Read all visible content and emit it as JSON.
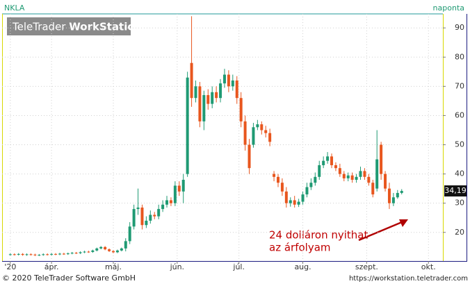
{
  "chart_data": {
    "type": "candlestick",
    "title": "NKLA",
    "subtitle": "naponta",
    "watermark": {
      "brand": "TeleTrader",
      "product": "WorkStation"
    },
    "annotation": [
      "24 dolláron nyithat",
      "az árfolyam"
    ],
    "up_color": "#1f9a73",
    "down_color": "#e8561e",
    "xlim": [
      68,
      282
    ],
    "xticks": [
      {
        "value": 72,
        "label": "'20"
      },
      {
        "value": 92,
        "label": "ápr."
      },
      {
        "value": 122,
        "label": "máj."
      },
      {
        "value": 153,
        "label": "jún."
      },
      {
        "value": 183,
        "label": "júl."
      },
      {
        "value": 214,
        "label": "aug."
      },
      {
        "value": 245,
        "label": "szept."
      },
      {
        "value": 275,
        "label": "okt."
      }
    ],
    "ylim": [
      10.2,
      94.8
    ],
    "yticks": [
      20,
      30,
      40,
      50,
      60,
      70,
      80,
      90
    ],
    "grid": true,
    "last_price": {
      "value": 34.19,
      "label": "34,19"
    },
    "x": [
      72,
      74,
      76,
      78,
      80,
      82,
      84,
      86,
      88,
      90,
      92,
      94,
      96,
      98,
      100,
      102,
      104,
      106,
      108,
      110,
      112,
      114,
      116,
      118,
      120,
      122,
      124,
      126,
      128,
      130,
      132,
      134,
      136,
      138,
      140,
      142,
      144,
      146,
      148,
      150,
      152,
      154,
      156,
      158,
      160,
      162,
      164,
      166,
      168,
      170,
      172,
      174,
      176,
      178,
      180,
      182,
      184,
      186,
      188,
      190,
      192,
      194,
      196,
      198,
      200,
      202,
      204,
      206,
      208,
      210,
      212,
      214,
      216,
      218,
      220,
      222,
      224,
      226,
      228,
      230,
      232,
      234,
      236,
      238,
      240,
      242,
      244,
      246,
      248,
      250,
      252,
      254,
      256,
      258,
      260,
      262
    ],
    "open": [
      12.4,
      12.5,
      12.4,
      12.6,
      12.3,
      12.5,
      12.4,
      12.2,
      12.3,
      12.5,
      12.4,
      12.6,
      12.5,
      12.7,
      12.6,
      12.8,
      13.0,
      12.9,
      13.2,
      13.4,
      13.3,
      13.8,
      14.5,
      15.0,
      14.2,
      13.6,
      13.2,
      13.8,
      14.5,
      17,
      22,
      28,
      28.5,
      22.5,
      24,
      26,
      25.5,
      28,
      29.5,
      31,
      30,
      36,
      34,
      40,
      78,
      66,
      70,
      58,
      67,
      64,
      68,
      66,
      71,
      74,
      70,
      72,
      66,
      58,
      50,
      50,
      56,
      57,
      55,
      54,
      40,
      39,
      37,
      34,
      30,
      31,
      29.5,
      30.5,
      33,
      35.5,
      37,
      39,
      43,
      44.5,
      46,
      43,
      42,
      40,
      38.5,
      39.5,
      38,
      39,
      41,
      39,
      37,
      35,
      50,
      40,
      35,
      30,
      32,
      33.5
    ],
    "high": [
      12.8,
      12.8,
      12.9,
      12.9,
      12.8,
      12.8,
      12.7,
      12.6,
      12.8,
      12.8,
      12.9,
      12.9,
      13.0,
      13.0,
      13.1,
      13.3,
      13.3,
      13.5,
      13.7,
      13.7,
      14.1,
      14.8,
      15.3,
      15.3,
      14.5,
      13.9,
      14.1,
      14.8,
      18,
      23.5,
      29.5,
      35,
      29.5,
      25.5,
      27.5,
      27,
      29.5,
      31,
      32.5,
      32,
      37.5,
      37.5,
      40,
      75,
      94,
      72,
      71.5,
      68.5,
      69,
      70,
      70,
      72.5,
      76,
      75.5,
      74,
      73.5,
      68,
      60,
      52,
      57.5,
      58.5,
      58,
      56.5,
      55.5,
      41,
      40,
      38.5,
      35.5,
      32,
      32.5,
      31.5,
      34,
      37,
      38.5,
      40.5,
      44.5,
      46,
      47.5,
      47,
      44,
      43.5,
      41,
      40.5,
      40.5,
      40,
      42.5,
      42,
      40,
      38,
      55,
      51,
      41,
      37,
      33.5,
      34.5,
      34.8
    ],
    "low": [
      12.1,
      12.1,
      12.1,
      12.0,
      12.0,
      12.1,
      11.9,
      11.9,
      12.0,
      12.1,
      12.1,
      12.2,
      12.2,
      12.3,
      12.3,
      12.5,
      12.6,
      12.6,
      12.9,
      13.0,
      13.0,
      13.5,
      14.2,
      13.9,
      13.3,
      12.9,
      12.9,
      13.5,
      13.5,
      16,
      21,
      26,
      21,
      21.5,
      23,
      24.5,
      24.5,
      27,
      28.5,
      29,
      29,
      32.5,
      30,
      39,
      63,
      64.5,
      56,
      55,
      62,
      62.5,
      64.5,
      64.5,
      69.5,
      68,
      68.5,
      64,
      56,
      48,
      40,
      49,
      55,
      53.5,
      52.5,
      49.5,
      37.5,
      35.5,
      32.5,
      28.5,
      28.8,
      28.5,
      28.7,
      29.5,
      32,
      34.5,
      36,
      38,
      42,
      43.5,
      42,
      41,
      39,
      37.5,
      37.5,
      37,
      37,
      38,
      38,
      36,
      32,
      34,
      38,
      34,
      28,
      29,
      31.5,
      33
    ],
    "close": [
      12.5,
      12.4,
      12.6,
      12.3,
      12.5,
      12.4,
      12.2,
      12.3,
      12.5,
      12.4,
      12.6,
      12.5,
      12.7,
      12.6,
      12.8,
      13.0,
      12.9,
      13.2,
      13.4,
      13.3,
      13.8,
      14.5,
      15.0,
      14.2,
      13.6,
      13.2,
      13.8,
      14.5,
      17,
      22,
      28,
      28.5,
      22.5,
      24,
      26,
      25.5,
      28,
      29.5,
      31,
      30,
      36,
      34,
      38,
      73,
      66,
      70,
      58,
      67,
      64,
      68,
      66,
      71,
      74,
      70,
      72,
      66,
      58,
      50,
      42,
      56,
      57,
      55,
      54,
      51,
      39,
      37,
      34,
      30,
      31,
      29.5,
      30.5,
      33,
      35.5,
      37,
      39,
      43,
      44.5,
      46,
      43,
      42,
      40,
      38.5,
      39.5,
      38,
      39,
      41,
      39,
      37,
      33,
      45,
      40,
      35,
      30,
      32,
      33.5,
      34.19
    ]
  },
  "footer": {
    "copyright": "© 2020 TeleTrader Software GmbH",
    "url": "https://workstation.teletrader.com"
  }
}
